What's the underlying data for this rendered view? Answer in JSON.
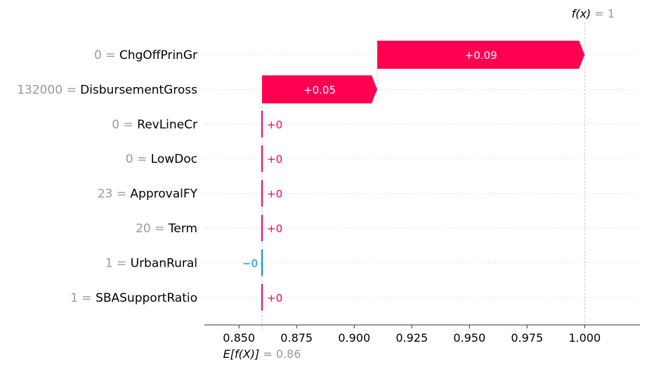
{
  "chart_data": {
    "type": "waterfall",
    "title": "",
    "xlabel": "",
    "ylabel": "",
    "xlim": [
      0.835,
      1.024
    ],
    "base_value": 0.86,
    "base_label": {
      "expr": "E[f(X)]",
      "eq": " = ",
      "value": "0.86"
    },
    "output_value": 1.0,
    "output_label": {
      "expr": "f(x)",
      "eq": " = ",
      "value": "1"
    },
    "ticks": [
      {
        "value": 0.85,
        "label": "0.850"
      },
      {
        "value": 0.875,
        "label": "0.875"
      },
      {
        "value": 0.9,
        "label": "0.900"
      },
      {
        "value": 0.925,
        "label": "0.925"
      },
      {
        "value": 0.95,
        "label": "0.950"
      },
      {
        "value": 0.975,
        "label": "0.975"
      },
      {
        "value": 1.0,
        "label": "1.000"
      }
    ],
    "features": [
      {
        "value": "0",
        "name": "ChgOffPrinGr",
        "contribution": 0.09,
        "label": "+0.09",
        "sign": "pos"
      },
      {
        "value": "132000",
        "name": "DisbursementGross",
        "contribution": 0.05,
        "label": "+0.05",
        "sign": "pos"
      },
      {
        "value": "0",
        "name": "RevLineCr",
        "contribution": 0.0,
        "label": "+0",
        "sign": "pos"
      },
      {
        "value": "0",
        "name": "LowDoc",
        "contribution": 0.0,
        "label": "+0",
        "sign": "pos"
      },
      {
        "value": "23",
        "name": "ApprovalFY",
        "contribution": 0.0,
        "label": "+0",
        "sign": "pos"
      },
      {
        "value": "20",
        "name": "Term",
        "contribution": 0.0,
        "label": "+0",
        "sign": "pos"
      },
      {
        "value": "1",
        "name": "UrbanRural",
        "contribution": 0.0,
        "label": "−0",
        "sign": "neg"
      },
      {
        "value": "1",
        "name": "SBASupportRatio",
        "contribution": 0.0,
        "label": "+0",
        "sign": "pos"
      }
    ],
    "colors": {
      "positive": "#ff0051",
      "negative": "#008bfb"
    },
    "grid": false
  }
}
